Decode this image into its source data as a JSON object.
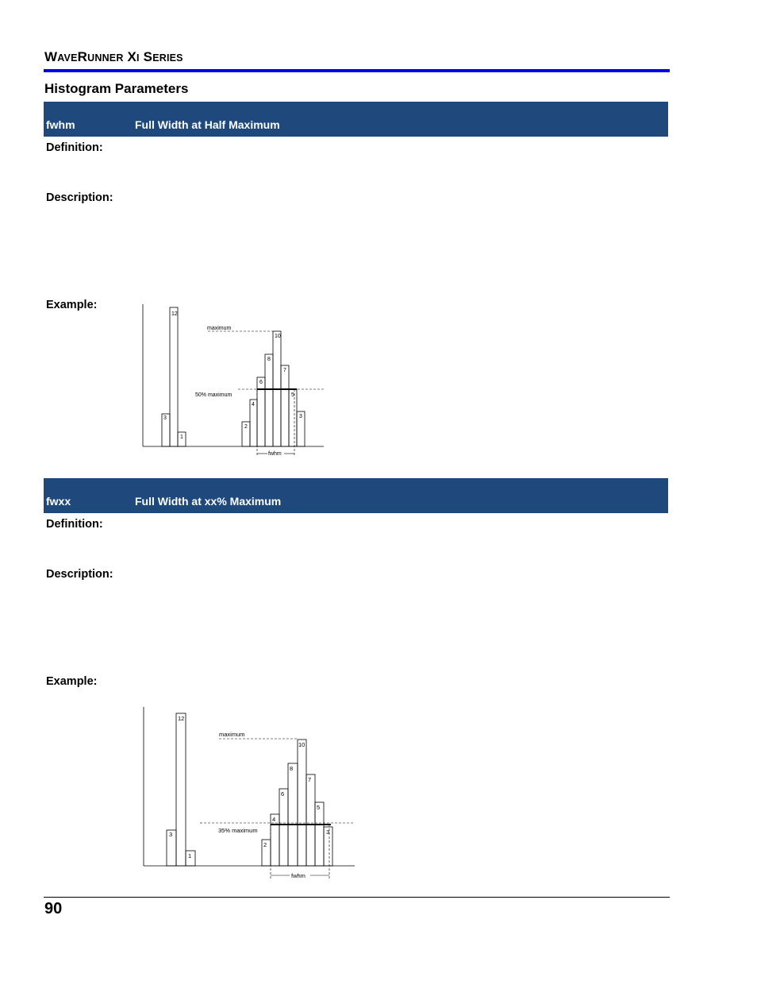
{
  "header": {
    "title_parts": [
      {
        "big": "W",
        "small": "AVE"
      },
      {
        "big": "R",
        "small": "UNNER"
      },
      {
        "big": " X",
        "small": "I"
      },
      {
        "big": " S",
        "small": "ERIES"
      }
    ]
  },
  "section_title": "Histogram Parameters",
  "params": [
    {
      "code": "fwhm",
      "name": "Full Width at Half Maximum",
      "definition_label": "Definition:",
      "description_label": "Description:",
      "example_label": "Example:",
      "figure": {
        "maximum_label": "maximum",
        "threshold_label": "50% maximum",
        "width_label": "fwhm",
        "bin_counts": [
          "3",
          "12",
          "1",
          "2",
          "4",
          "6",
          "8",
          "10",
          "7",
          "5",
          "3"
        ]
      }
    },
    {
      "code": "fwxx",
      "name": "Full Width at xx% Maximum",
      "definition_label": "Definition:",
      "description_label": "Description:",
      "example_label": "Example:",
      "figure": {
        "maximum_label": "maximum",
        "threshold_label": "35% maximum",
        "width_label": "fwhm",
        "bin_counts": [
          "3",
          "12",
          "1",
          "2",
          "4",
          "6",
          "8",
          "10",
          "7",
          "5",
          "3"
        ]
      }
    }
  ],
  "page_number": "90"
}
